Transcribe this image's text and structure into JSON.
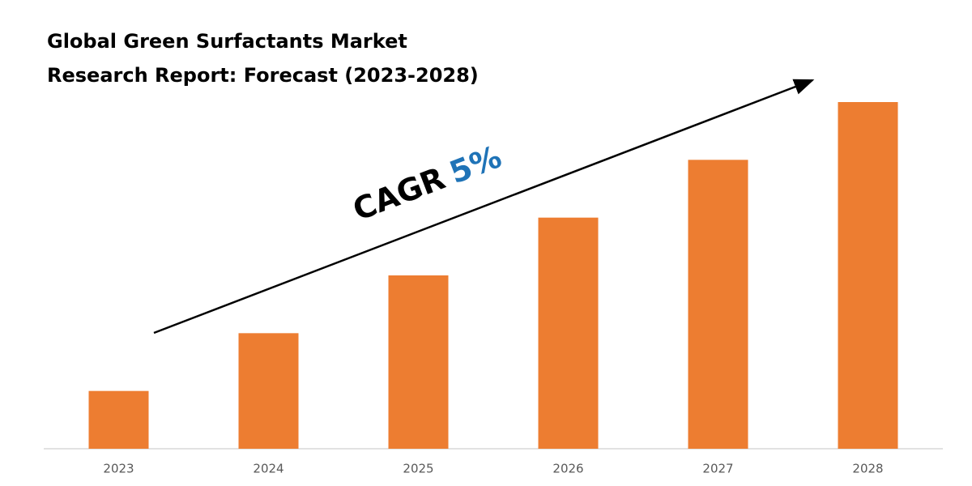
{
  "chart_data": {
    "type": "bar",
    "title_lines": [
      "Global Green Surfactants Market",
      "Research Report: Forecast (2023-2028)"
    ],
    "categories": [
      "2023",
      "2024",
      "2025",
      "2026",
      "2027",
      "2028"
    ],
    "values": [
      1,
      2,
      3,
      4,
      5,
      6
    ],
    "color": "#ed7d31",
    "ylim": [
      0,
      6
    ],
    "annotation": {
      "text": "CAGR",
      "cagr": {
        "value": 5,
        "label": "5%"
      },
      "cagr_color": "#1f73b7"
    }
  }
}
